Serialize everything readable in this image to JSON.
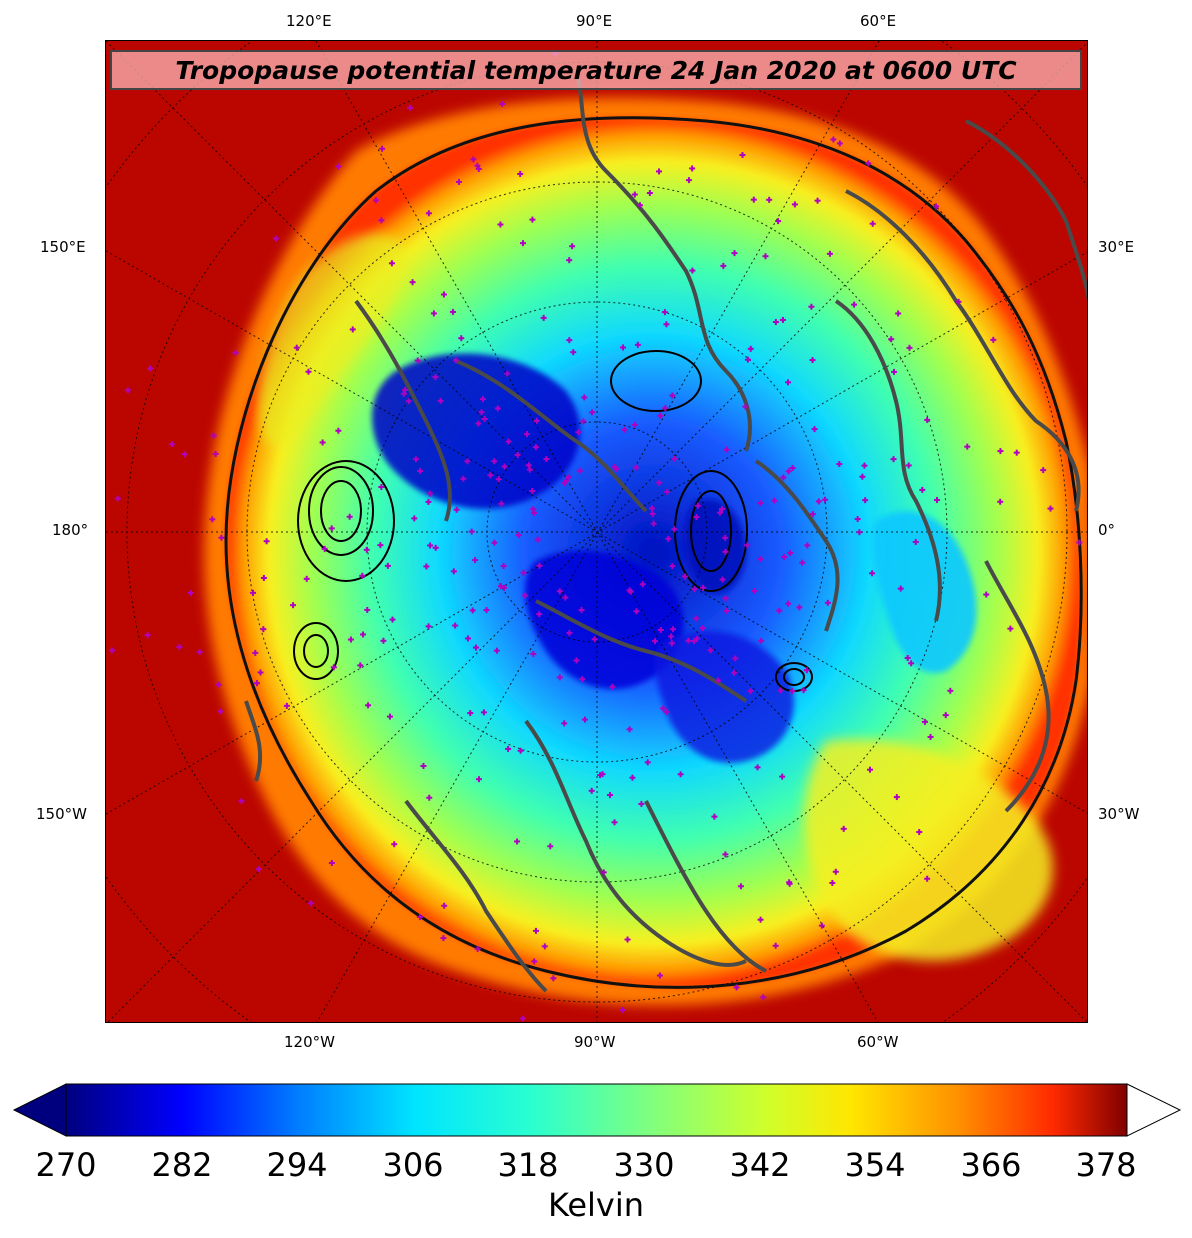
{
  "title": "Tropopause potential temperature 24 Jan 2020 at 0600 UTC",
  "lon_labels": {
    "top": [
      "120°E",
      "90°E",
      "60°E"
    ],
    "left": [
      "150°E",
      "180°",
      "150°W"
    ],
    "right": [
      "30°E",
      "0°",
      "30°W"
    ],
    "bottom": [
      "120°W",
      "90°W",
      "60°W"
    ]
  },
  "colorbar": {
    "label": "Kelvin",
    "ticks": [
      "270",
      "282",
      "294",
      "306",
      "318",
      "330",
      "342",
      "354",
      "366",
      "378"
    ],
    "colors": [
      "#00007f",
      "#0000ff",
      "#007fff",
      "#00e5ff",
      "#2bffcf",
      "#7fff7f",
      "#cfff2b",
      "#ffe600",
      "#ff9100",
      "#ff2a00",
      "#7f0000"
    ]
  },
  "map_colors": {
    "outer": "#b00000",
    "coast": "#4a4a4a",
    "stations": "#b000c0"
  }
}
